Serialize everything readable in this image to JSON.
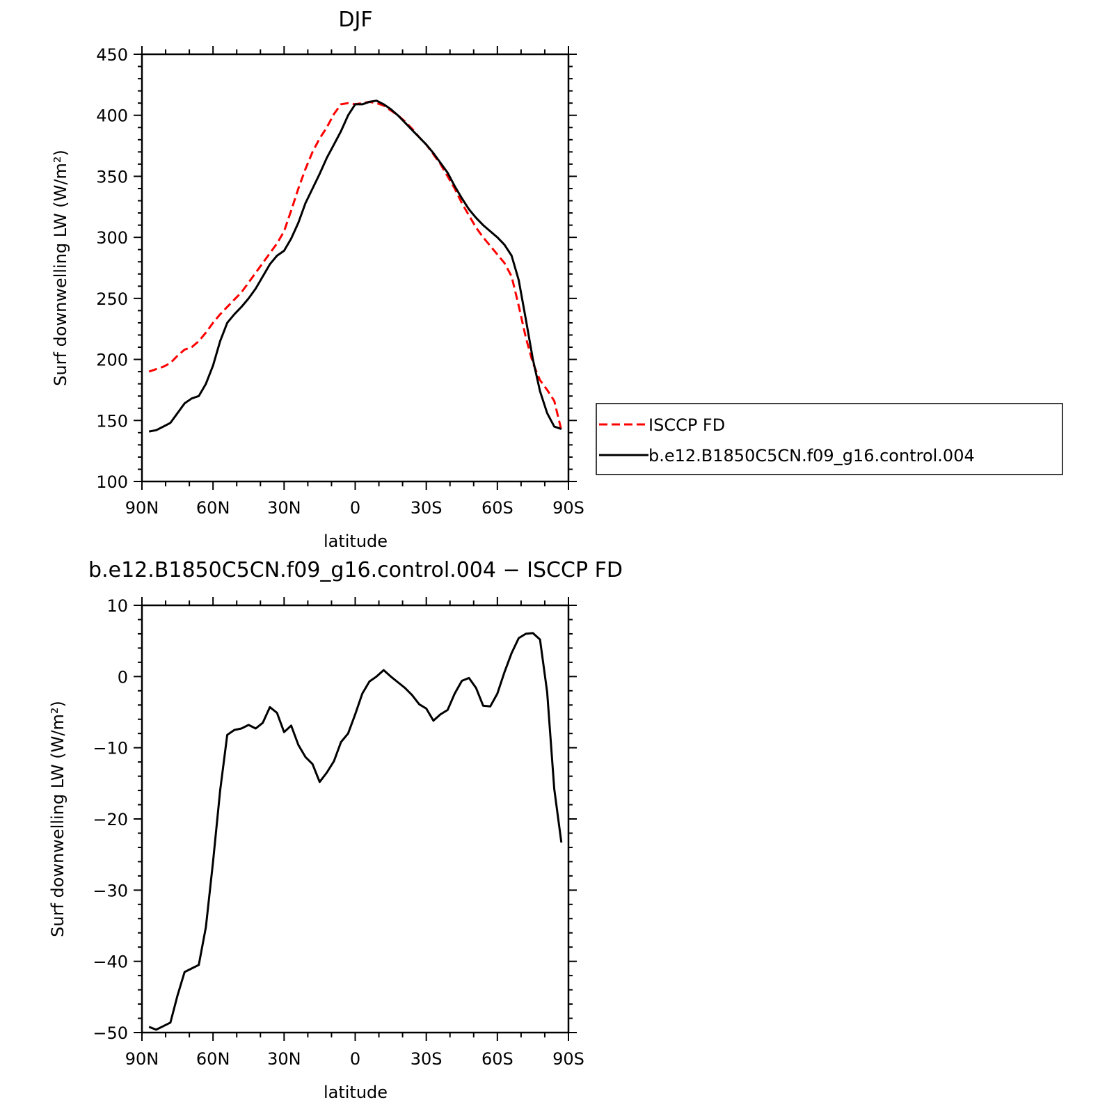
{
  "chart_data": [
    {
      "type": "line",
      "title": "DJF",
      "xlabel": "latitude",
      "ylabel": "Surf downwelling LW (W/m²)",
      "xlim": [
        90,
        -90
      ],
      "ylim": [
        100,
        450
      ],
      "x_ticks": [
        90,
        60,
        30,
        0,
        -30,
        -60,
        -90
      ],
      "x_tick_labels": [
        "90N",
        "60N",
        "30N",
        "0",
        "30S",
        "60S",
        "90S"
      ],
      "y_ticks": [
        100,
        150,
        200,
        250,
        300,
        350,
        400,
        450
      ],
      "y_tick_labels": [
        "100",
        "150",
        "200",
        "250",
        "300",
        "350",
        "400",
        "450"
      ],
      "legend_position": "right",
      "series": [
        {
          "name": "ISCCP FD",
          "color": "#ff0000",
          "style": "dashed",
          "x": [
            87,
            84,
            81,
            78,
            75,
            72,
            69,
            66,
            63,
            60,
            57,
            54,
            51,
            48,
            45,
            42,
            39,
            36,
            33,
            30,
            27,
            24,
            21,
            18,
            15,
            12,
            9,
            6,
            3,
            0,
            -3,
            -6,
            -9,
            -12,
            -15,
            -18,
            -21,
            -24,
            -27,
            -30,
            -33,
            -36,
            -39,
            -42,
            -45,
            -48,
            -51,
            -54,
            -57,
            -60,
            -63,
            -66,
            -69,
            -72,
            -75,
            -78,
            -81,
            -84,
            -87
          ],
          "y": [
            190,
            192,
            194,
            197,
            203,
            208,
            210,
            215,
            222,
            230,
            237,
            243,
            249,
            255,
            263,
            271,
            279,
            287,
            295,
            305,
            322,
            340,
            356,
            370,
            381,
            390,
            401,
            409,
            410,
            409,
            410,
            411,
            410,
            408,
            404,
            400,
            395,
            389,
            382,
            376,
            368,
            360,
            350,
            340,
            328,
            318,
            308,
            300,
            293,
            286,
            279,
            268,
            244,
            218,
            197,
            183,
            175,
            166,
            142
          ]
        },
        {
          "name": "b.e12.B1850C5CN.f09_g16.control.004",
          "color": "#000000",
          "style": "solid",
          "x": [
            87,
            84,
            81,
            78,
            75,
            72,
            69,
            66,
            63,
            60,
            57,
            54,
            51,
            48,
            45,
            42,
            39,
            36,
            33,
            30,
            27,
            24,
            21,
            18,
            15,
            12,
            9,
            6,
            3,
            0,
            -3,
            -6,
            -9,
            -12,
            -15,
            -18,
            -21,
            -24,
            -27,
            -30,
            -33,
            -36,
            -39,
            -42,
            -45,
            -48,
            -51,
            -54,
            -57,
            -60,
            -63,
            -66,
            -69,
            -72,
            -75,
            -78,
            -81,
            -84,
            -87
          ],
          "y": [
            141,
            142,
            145,
            148,
            156,
            164,
            168,
            170,
            180,
            195,
            215,
            230,
            237,
            243,
            250,
            258,
            268,
            278,
            285,
            289,
            299,
            312,
            328,
            340,
            352,
            365,
            376,
            387,
            400,
            409,
            409,
            411,
            412,
            409,
            405,
            400,
            394,
            388,
            382,
            376,
            369,
            361,
            353,
            342,
            332,
            323,
            316,
            310,
            305,
            300,
            294,
            285,
            265,
            233,
            200,
            174,
            156,
            145,
            143
          ]
        }
      ]
    },
    {
      "type": "line",
      "title": "b.e12.B1850C5CN.f09_g16.control.004 − ISCCP FD",
      "xlabel": "latitude",
      "ylabel": "Surf downwelling LW (W/m²)",
      "xlim": [
        90,
        -90
      ],
      "ylim": [
        -50,
        10
      ],
      "x_ticks": [
        90,
        60,
        30,
        0,
        -30,
        -60,
        -90
      ],
      "x_tick_labels": [
        "90N",
        "60N",
        "30N",
        "0",
        "30S",
        "60S",
        "90S"
      ],
      "y_ticks": [
        -50,
        -40,
        -30,
        -20,
        -10,
        0,
        10
      ],
      "y_tick_labels": [
        "−50",
        "−40",
        "−30",
        "−20",
        "−10",
        "0",
        "10"
      ],
      "series": [
        {
          "color": "#000000",
          "style": "solid",
          "x": [
            87,
            84,
            81,
            78,
            75,
            72,
            69,
            66,
            63,
            60,
            57,
            54,
            51,
            48,
            45,
            42,
            39,
            36,
            33,
            30,
            27,
            24,
            21,
            18,
            15,
            12,
            9,
            6,
            3,
            0,
            -3,
            -6,
            -9,
            -12,
            -15,
            -18,
            -21,
            -24,
            -27,
            -30,
            -33,
            -36,
            -39,
            -42,
            -45,
            -48,
            -51,
            -54,
            -57,
            -60,
            -63,
            -66,
            -69,
            -72,
            -75,
            -78,
            -81,
            -84,
            -87
          ],
          "y": [
            -49.2,
            -49.6,
            -49.1,
            -48.6,
            -44.8,
            -41.5,
            -41,
            -40.5,
            -35.2,
            -26,
            -16,
            -8.2,
            -7.5,
            -7.3,
            -6.8,
            -7.3,
            -6.5,
            -4.3,
            -5.1,
            -7.8,
            -6.9,
            -9.6,
            -11.3,
            -12.3,
            -14.8,
            -13.5,
            -11.9,
            -9.2,
            -8,
            -5.3,
            -2.4,
            -0.7,
            0,
            0.9,
            0,
            -0.8,
            -1.6,
            -2.6,
            -3.9,
            -4.5,
            -6.2,
            -5.3,
            -4.7,
            -2.4,
            -0.6,
            -0.2,
            -1.6,
            -4.1,
            -4.2,
            -2.4,
            0.6,
            3.3,
            5.4,
            6,
            6.1,
            5.2,
            -2.2,
            -15.8,
            -23.3
          ]
        }
      ]
    }
  ]
}
